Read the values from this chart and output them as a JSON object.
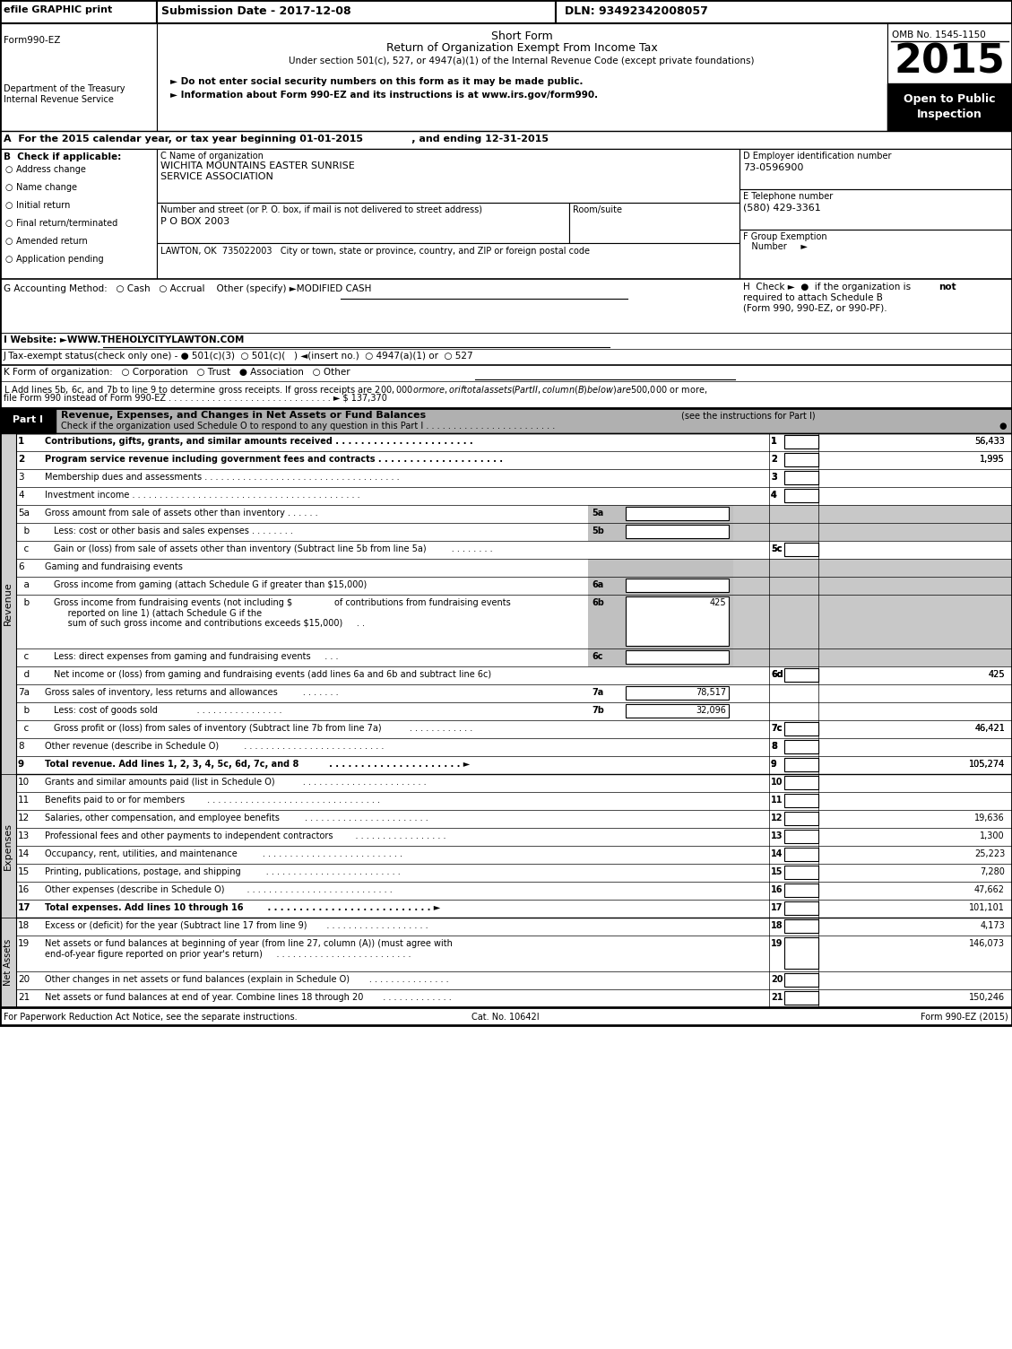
{
  "title_header": "efile GRAPHIC print",
  "submission_date": "Submission Date - 2017-12-08",
  "dln": "DLN: 93492342008057",
  "form_name": "Form990-EZ",
  "short_form": "Short Form",
  "return_title": "Return of Organization Exempt From Income Tax",
  "under_section": "Under section 501(c), 527, or 4947(a)(1) of the Internal Revenue Code (except private foundations)",
  "omb": "OMB No. 1545-1150",
  "year": "2015",
  "dept": "Department of the Treasury",
  "irs": "Internal Revenue Service",
  "do_not_enter": "► Do not enter social security numbers on this form as it may be made public.",
  "info_about": "► Information about Form 990-EZ and its instructions is at www.irs.gov/form990.",
  "open_to_public": "Open to Public\nInspection",
  "line_A": "A  For the 2015 calendar year, or tax year beginning 01-01-2015              , and ending 12-31-2015",
  "check_items": [
    "Address change",
    "Name change",
    "Initial return",
    "Final return/terminated",
    "Amended return",
    "Application pending"
  ],
  "org_name1": "WICHITA MOUNTAINS EASTER SUNRISE",
  "org_name2": "SERVICE ASSOCIATION",
  "street_label": "Number and street (or P. O. box, if mail is not delivered to street address)",
  "street": "P O BOX 2003",
  "room_suite": "Room/suite",
  "city_state_zip": "LAWTON, OK  735022003   City or town, state or province, country, and ZIP or foreign postal code",
  "ein": "73-0596900",
  "phone": "(580) 429-3361",
  "footer_left": "For Paperwork Reduction Act Notice, see the separate instructions.",
  "footer_cat": "Cat. No. 10642I",
  "footer_right": "Form 990-EZ (2015)"
}
